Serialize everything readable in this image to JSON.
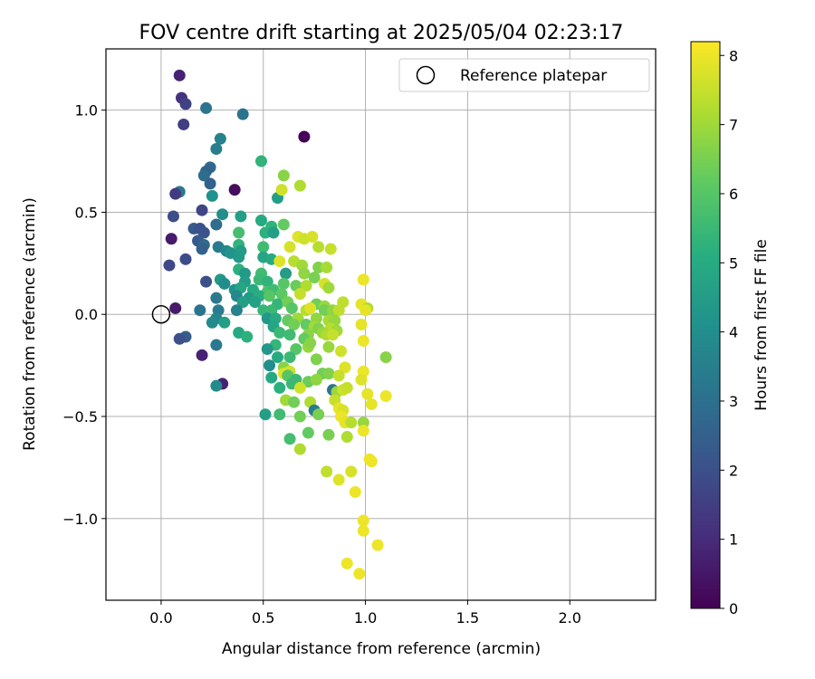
{
  "chart_data": {
    "type": "scatter",
    "title": "FOV centre drift starting at 2025/05/04 02:23:17",
    "xlabel": "Angular distance from reference (arcmin)",
    "ylabel": "Rotation from reference (arcmin)",
    "xlim": [
      -0.27,
      2.42
    ],
    "ylim": [
      -1.4,
      1.3
    ],
    "xticks": [
      0.0,
      0.5,
      1.0,
      1.5,
      2.0
    ],
    "xtick_labels": [
      "0.0",
      "0.5",
      "1.0",
      "1.5",
      "2.0"
    ],
    "yticks": [
      -1.0,
      -0.5,
      0.0,
      0.5,
      1.0
    ],
    "ytick_labels": [
      "−1.0",
      "−0.5",
      "0.0",
      "0.5",
      "1.0"
    ],
    "grid": true,
    "legend": {
      "position": "top-right",
      "entries": [
        "Reference platepar"
      ]
    },
    "reference_point": {
      "x": 0.0,
      "y": 0.0
    },
    "colorbar": {
      "label": "Hours from first FF file",
      "colormap": "viridis",
      "range": [
        0,
        8.2
      ],
      "ticks": [
        0,
        1,
        2,
        3,
        4,
        5,
        6,
        7,
        8
      ],
      "tick_labels": [
        "0",
        "1",
        "2",
        "3",
        "4",
        "5",
        "6",
        "7",
        "8"
      ]
    },
    "points": [
      {
        "x": 0.09,
        "y": 1.17,
        "c": 0.8
      },
      {
        "x": 0.1,
        "y": 1.06,
        "c": 1.2
      },
      {
        "x": 0.12,
        "y": 1.03,
        "c": 1.6
      },
      {
        "x": 0.11,
        "y": 0.93,
        "c": 1.5
      },
      {
        "x": 0.22,
        "y": 1.01,
        "c": 3.2
      },
      {
        "x": 0.4,
        "y": 0.98,
        "c": 3.1
      },
      {
        "x": 0.7,
        "y": 0.87,
        "c": 0.1
      },
      {
        "x": 0.29,
        "y": 0.86,
        "c": 3.6
      },
      {
        "x": 0.27,
        "y": 0.81,
        "c": 3.5
      },
      {
        "x": 0.24,
        "y": 0.72,
        "c": 2.8
      },
      {
        "x": 0.22,
        "y": 0.7,
        "c": 2.5
      },
      {
        "x": 0.21,
        "y": 0.68,
        "c": 2.9
      },
      {
        "x": 0.24,
        "y": 0.64,
        "c": 2.6
      },
      {
        "x": 0.36,
        "y": 0.61,
        "c": 0.3
      },
      {
        "x": 0.09,
        "y": 0.6,
        "c": 3.3
      },
      {
        "x": 0.07,
        "y": 0.59,
        "c": 1.4
      },
      {
        "x": 0.25,
        "y": 0.58,
        "c": 4.1
      },
      {
        "x": 0.49,
        "y": 0.75,
        "c": 5.3
      },
      {
        "x": 0.6,
        "y": 0.68,
        "c": 6.7
      },
      {
        "x": 0.68,
        "y": 0.63,
        "c": 7.2
      },
      {
        "x": 0.57,
        "y": 0.57,
        "c": 4.6
      },
      {
        "x": 0.59,
        "y": 0.61,
        "c": 7.6
      },
      {
        "x": 0.2,
        "y": 0.51,
        "c": 1.7
      },
      {
        "x": 0.3,
        "y": 0.49,
        "c": 4.0
      },
      {
        "x": 0.39,
        "y": 0.48,
        "c": 4.6
      },
      {
        "x": 0.06,
        "y": 0.48,
        "c": 1.9
      },
      {
        "x": 0.49,
        "y": 0.46,
        "c": 5.0
      },
      {
        "x": 0.54,
        "y": 0.43,
        "c": 5.3
      },
      {
        "x": 0.6,
        "y": 0.44,
        "c": 6.2
      },
      {
        "x": 0.27,
        "y": 0.44,
        "c": 2.9
      },
      {
        "x": 0.16,
        "y": 0.42,
        "c": 2.3
      },
      {
        "x": 0.19,
        "y": 0.42,
        "c": 2.0
      },
      {
        "x": 0.21,
        "y": 0.4,
        "c": 2.1
      },
      {
        "x": 0.38,
        "y": 0.4,
        "c": 5.7
      },
      {
        "x": 0.51,
        "y": 0.4,
        "c": 5.2
      },
      {
        "x": 0.55,
        "y": 0.4,
        "c": 4.6
      },
      {
        "x": 0.05,
        "y": 0.37,
        "c": 0.6
      },
      {
        "x": 0.18,
        "y": 0.36,
        "c": 2.3
      },
      {
        "x": 0.21,
        "y": 0.34,
        "c": 2.8
      },
      {
        "x": 0.28,
        "y": 0.33,
        "c": 3.4
      },
      {
        "x": 0.38,
        "y": 0.34,
        "c": 5.3
      },
      {
        "x": 0.5,
        "y": 0.33,
        "c": 5.6
      },
      {
        "x": 0.63,
        "y": 0.33,
        "c": 7.7
      },
      {
        "x": 0.67,
        "y": 0.38,
        "c": 7.8
      },
      {
        "x": 0.7,
        "y": 0.37,
        "c": 7.6
      },
      {
        "x": 0.74,
        "y": 0.38,
        "c": 7.7
      },
      {
        "x": 0.77,
        "y": 0.33,
        "c": 7.3
      },
      {
        "x": 0.83,
        "y": 0.32,
        "c": 7.5
      },
      {
        "x": 0.2,
        "y": 0.32,
        "c": 2.5
      },
      {
        "x": 0.32,
        "y": 0.31,
        "c": 3.8
      },
      {
        "x": 0.39,
        "y": 0.31,
        "c": 4.5
      },
      {
        "x": 0.34,
        "y": 0.3,
        "c": 4.2
      },
      {
        "x": 0.38,
        "y": 0.28,
        "c": 4.4
      },
      {
        "x": 0.5,
        "y": 0.28,
        "c": 4.8
      },
      {
        "x": 0.54,
        "y": 0.27,
        "c": 5.0
      },
      {
        "x": 0.58,
        "y": 0.26,
        "c": 7.8
      },
      {
        "x": 0.65,
        "y": 0.26,
        "c": 7.3
      },
      {
        "x": 0.69,
        "y": 0.24,
        "c": 7.0
      },
      {
        "x": 0.77,
        "y": 0.23,
        "c": 6.6
      },
      {
        "x": 0.81,
        "y": 0.23,
        "c": 7.1
      },
      {
        "x": 0.12,
        "y": 0.27,
        "c": 1.9
      },
      {
        "x": 0.04,
        "y": 0.24,
        "c": 1.8
      },
      {
        "x": 0.38,
        "y": 0.22,
        "c": 5.2
      },
      {
        "x": 0.41,
        "y": 0.2,
        "c": 4.4
      },
      {
        "x": 0.49,
        "y": 0.2,
        "c": 5.6
      },
      {
        "x": 0.61,
        "y": 0.2,
        "c": 4.5
      },
      {
        "x": 0.7,
        "y": 0.2,
        "c": 6.8
      },
      {
        "x": 0.75,
        "y": 0.18,
        "c": 6.5
      },
      {
        "x": 0.22,
        "y": 0.16,
        "c": 2.0
      },
      {
        "x": 0.29,
        "y": 0.17,
        "c": 4.4
      },
      {
        "x": 0.31,
        "y": 0.15,
        "c": 4.0
      },
      {
        "x": 0.41,
        "y": 0.16,
        "c": 4.5
      },
      {
        "x": 0.48,
        "y": 0.17,
        "c": 5.5
      },
      {
        "x": 0.52,
        "y": 0.16,
        "c": 5.3
      },
      {
        "x": 0.6,
        "y": 0.15,
        "c": 6.0
      },
      {
        "x": 0.66,
        "y": 0.14,
        "c": 6.3
      },
      {
        "x": 0.71,
        "y": 0.14,
        "c": 7.2
      },
      {
        "x": 0.8,
        "y": 0.15,
        "c": 7.7
      },
      {
        "x": 0.82,
        "y": 0.13,
        "c": 7.0
      },
      {
        "x": 0.99,
        "y": 0.17,
        "c": 8.0
      },
      {
        "x": 0.36,
        "y": 0.12,
        "c": 4.1
      },
      {
        "x": 0.39,
        "y": 0.13,
        "c": 4.8
      },
      {
        "x": 0.45,
        "y": 0.12,
        "c": 5.0
      },
      {
        "x": 0.52,
        "y": 0.11,
        "c": 5.8
      },
      {
        "x": 0.55,
        "y": 0.12,
        "c": 5.6
      },
      {
        "x": 0.59,
        "y": 0.1,
        "c": 6.1
      },
      {
        "x": 0.68,
        "y": 0.1,
        "c": 7.5
      },
      {
        "x": 0.37,
        "y": 0.09,
        "c": 3.8
      },
      {
        "x": 0.43,
        "y": 0.08,
        "c": 4.4
      },
      {
        "x": 0.48,
        "y": 0.09,
        "c": 5.1
      },
      {
        "x": 0.53,
        "y": 0.09,
        "c": 6.0
      },
      {
        "x": 0.27,
        "y": 0.08,
        "c": 3.3
      },
      {
        "x": 0.4,
        "y": 0.06,
        "c": 4.6
      },
      {
        "x": 0.46,
        "y": 0.06,
        "c": 4.7
      },
      {
        "x": 0.57,
        "y": 0.05,
        "c": 5.4
      },
      {
        "x": 0.62,
        "y": 0.06,
        "c": 6.4
      },
      {
        "x": 0.76,
        "y": 0.05,
        "c": 6.4
      },
      {
        "x": 0.8,
        "y": 0.04,
        "c": 6.9
      },
      {
        "x": 0.89,
        "y": 0.06,
        "c": 7.4
      },
      {
        "x": 0.98,
        "y": 0.05,
        "c": 7.9
      },
      {
        "x": 1.01,
        "y": 0.03,
        "c": 7.2
      },
      {
        "x": 0.07,
        "y": 0.03,
        "c": 0.6
      },
      {
        "x": 0.19,
        "y": 0.02,
        "c": 3.1
      },
      {
        "x": 0.28,
        "y": 0.02,
        "c": 3.4
      },
      {
        "x": 0.37,
        "y": 0.02,
        "c": 3.6
      },
      {
        "x": 0.5,
        "y": 0.02,
        "c": 5.4
      },
      {
        "x": 0.54,
        "y": 0.02,
        "c": 5.5
      },
      {
        "x": 0.64,
        "y": 0.03,
        "c": 6.0
      },
      {
        "x": 0.71,
        "y": 0.02,
        "c": 7.3
      },
      {
        "x": 0.73,
        "y": 0.03,
        "c": 7.8
      },
      {
        "x": 0.8,
        "y": 0.02,
        "c": 6.4
      },
      {
        "x": 0.84,
        "y": 0.02,
        "c": 6.8
      },
      {
        "x": 0.87,
        "y": 0.02,
        "c": 7.4
      },
      {
        "x": 1.0,
        "y": 0.02,
        "c": 7.9
      },
      {
        "x": 0.27,
        "y": -0.02,
        "c": 3.6
      },
      {
        "x": 0.52,
        "y": -0.02,
        "c": 4.3
      },
      {
        "x": 0.56,
        "y": -0.02,
        "c": 5.0
      },
      {
        "x": 0.62,
        "y": -0.03,
        "c": 6.2
      },
      {
        "x": 0.67,
        "y": -0.02,
        "c": 7.0
      },
      {
        "x": 0.76,
        "y": -0.02,
        "c": 6.8
      },
      {
        "x": 0.82,
        "y": -0.03,
        "c": 7.1
      },
      {
        "x": 0.85,
        "y": -0.03,
        "c": 6.9
      },
      {
        "x": 0.98,
        "y": -0.05,
        "c": 7.9
      },
      {
        "x": 0.25,
        "y": -0.04,
        "c": 3.9
      },
      {
        "x": 0.31,
        "y": -0.04,
        "c": 4.6
      },
      {
        "x": 0.55,
        "y": -0.06,
        "c": 4.8
      },
      {
        "x": 0.65,
        "y": -0.05,
        "c": 6.4
      },
      {
        "x": 0.71,
        "y": -0.05,
        "c": 6.2
      },
      {
        "x": 0.75,
        "y": -0.06,
        "c": 7.0
      },
      {
        "x": 0.77,
        "y": -0.07,
        "c": 6.6
      },
      {
        "x": 0.83,
        "y": -0.07,
        "c": 7.3
      },
      {
        "x": 0.86,
        "y": -0.08,
        "c": 7.0
      },
      {
        "x": 0.38,
        "y": -0.09,
        "c": 4.9
      },
      {
        "x": 0.58,
        "y": -0.09,
        "c": 5.5
      },
      {
        "x": 0.63,
        "y": -0.1,
        "c": 5.6
      },
      {
        "x": 0.72,
        "y": -0.1,
        "c": 6.7
      },
      {
        "x": 0.79,
        "y": -0.09,
        "c": 6.9
      },
      {
        "x": 0.81,
        "y": -0.1,
        "c": 7.2
      },
      {
        "x": 0.42,
        "y": -0.11,
        "c": 5.2
      },
      {
        "x": 0.12,
        "y": -0.11,
        "c": 2.4
      },
      {
        "x": 0.09,
        "y": -0.12,
        "c": 2.0
      },
      {
        "x": 0.7,
        "y": -0.12,
        "c": 6.2
      },
      {
        "x": 0.84,
        "y": -0.1,
        "c": 7.5
      },
      {
        "x": 0.99,
        "y": -0.13,
        "c": 8.0
      },
      {
        "x": 0.27,
        "y": -0.15,
        "c": 3.3
      },
      {
        "x": 0.56,
        "y": -0.15,
        "c": 5.4
      },
      {
        "x": 0.72,
        "y": -0.16,
        "c": 6.9
      },
      {
        "x": 0.73,
        "y": -0.14,
        "c": 6.7
      },
      {
        "x": 0.66,
        "y": -0.17,
        "c": 6.0
      },
      {
        "x": 0.82,
        "y": -0.16,
        "c": 6.9
      },
      {
        "x": 0.52,
        "y": -0.17,
        "c": 4.3
      },
      {
        "x": 0.88,
        "y": -0.18,
        "c": 7.6
      },
      {
        "x": 0.2,
        "y": -0.2,
        "c": 0.8
      },
      {
        "x": 0.57,
        "y": -0.21,
        "c": 5.0
      },
      {
        "x": 0.63,
        "y": -0.21,
        "c": 5.5
      },
      {
        "x": 0.76,
        "y": -0.22,
        "c": 6.6
      },
      {
        "x": 0.53,
        "y": -0.25,
        "c": 4.0
      },
      {
        "x": 0.6,
        "y": -0.26,
        "c": 6.7
      },
      {
        "x": 0.63,
        "y": -0.28,
        "c": 7.6
      },
      {
        "x": 0.6,
        "y": -0.29,
        "c": 7.8
      },
      {
        "x": 0.79,
        "y": -0.29,
        "c": 6.4
      },
      {
        "x": 0.82,
        "y": -0.29,
        "c": 6.6
      },
      {
        "x": 0.9,
        "y": -0.26,
        "c": 7.8
      },
      {
        "x": 0.99,
        "y": -0.28,
        "c": 8.0
      },
      {
        "x": 0.54,
        "y": -0.31,
        "c": 4.9
      },
      {
        "x": 0.62,
        "y": -0.3,
        "c": 6.0
      },
      {
        "x": 0.66,
        "y": -0.32,
        "c": 5.5
      },
      {
        "x": 0.72,
        "y": -0.33,
        "c": 6.3
      },
      {
        "x": 0.76,
        "y": -0.32,
        "c": 6.8
      },
      {
        "x": 0.87,
        "y": -0.3,
        "c": 7.5
      },
      {
        "x": 0.98,
        "y": -0.32,
        "c": 7.8
      },
      {
        "x": 0.3,
        "y": -0.34,
        "c": 0.8
      },
      {
        "x": 0.27,
        "y": -0.35,
        "c": 3.9
      },
      {
        "x": 0.58,
        "y": -0.36,
        "c": 5.2
      },
      {
        "x": 0.64,
        "y": -0.34,
        "c": 5.5
      },
      {
        "x": 0.68,
        "y": -0.36,
        "c": 7.6
      },
      {
        "x": 0.84,
        "y": -0.37,
        "c": 3.1
      },
      {
        "x": 0.86,
        "y": -0.38,
        "c": 6.9
      },
      {
        "x": 0.89,
        "y": -0.37,
        "c": 7.6
      },
      {
        "x": 0.91,
        "y": -0.36,
        "c": 7.5
      },
      {
        "x": 1.01,
        "y": -0.39,
        "c": 7.9
      },
      {
        "x": 1.1,
        "y": -0.4,
        "c": 8.0
      },
      {
        "x": 0.61,
        "y": -0.42,
        "c": 7.0
      },
      {
        "x": 0.65,
        "y": -0.43,
        "c": 6.4
      },
      {
        "x": 0.73,
        "y": -0.43,
        "c": 7.2
      },
      {
        "x": 0.85,
        "y": -0.42,
        "c": 7.5
      },
      {
        "x": 1.03,
        "y": -0.44,
        "c": 7.9
      },
      {
        "x": 0.75,
        "y": -0.47,
        "c": 3.4
      },
      {
        "x": 0.87,
        "y": -0.46,
        "c": 7.9
      },
      {
        "x": 0.89,
        "y": -0.47,
        "c": 7.7
      },
      {
        "x": 0.51,
        "y": -0.49,
        "c": 4.6
      },
      {
        "x": 0.58,
        "y": -0.49,
        "c": 5.6
      },
      {
        "x": 0.68,
        "y": -0.5,
        "c": 6.4
      },
      {
        "x": 0.77,
        "y": -0.49,
        "c": 6.5
      },
      {
        "x": 0.88,
        "y": -0.5,
        "c": 8.0
      },
      {
        "x": 0.9,
        "y": -0.53,
        "c": 7.9
      },
      {
        "x": 0.93,
        "y": -0.53,
        "c": 7.3
      },
      {
        "x": 0.99,
        "y": -0.53,
        "c": 6.9
      },
      {
        "x": 0.99,
        "y": -0.57,
        "c": 8.0
      },
      {
        "x": 0.72,
        "y": -0.58,
        "c": 6.2
      },
      {
        "x": 0.82,
        "y": -0.59,
        "c": 6.5
      },
      {
        "x": 0.91,
        "y": -0.6,
        "c": 7.2
      },
      {
        "x": 0.63,
        "y": -0.61,
        "c": 5.7
      },
      {
        "x": 0.68,
        "y": -0.66,
        "c": 7.2
      },
      {
        "x": 1.02,
        "y": -0.71,
        "c": 8.0
      },
      {
        "x": 1.03,
        "y": -0.72,
        "c": 8.0
      },
      {
        "x": 0.81,
        "y": -0.77,
        "c": 7.4
      },
      {
        "x": 0.87,
        "y": -0.81,
        "c": 7.8
      },
      {
        "x": 0.93,
        "y": -0.77,
        "c": 7.7
      },
      {
        "x": 0.95,
        "y": -0.87,
        "c": 8.0
      },
      {
        "x": 0.99,
        "y": -1.01,
        "c": 8.0
      },
      {
        "x": 0.99,
        "y": -1.06,
        "c": 8.0
      },
      {
        "x": 1.06,
        "y": -1.13,
        "c": 8.0
      },
      {
        "x": 0.91,
        "y": -1.22,
        "c": 8.0
      },
      {
        "x": 0.97,
        "y": -1.27,
        "c": 8.0
      },
      {
        "x": 1.1,
        "y": -0.21,
        "c": 6.7
      }
    ]
  }
}
